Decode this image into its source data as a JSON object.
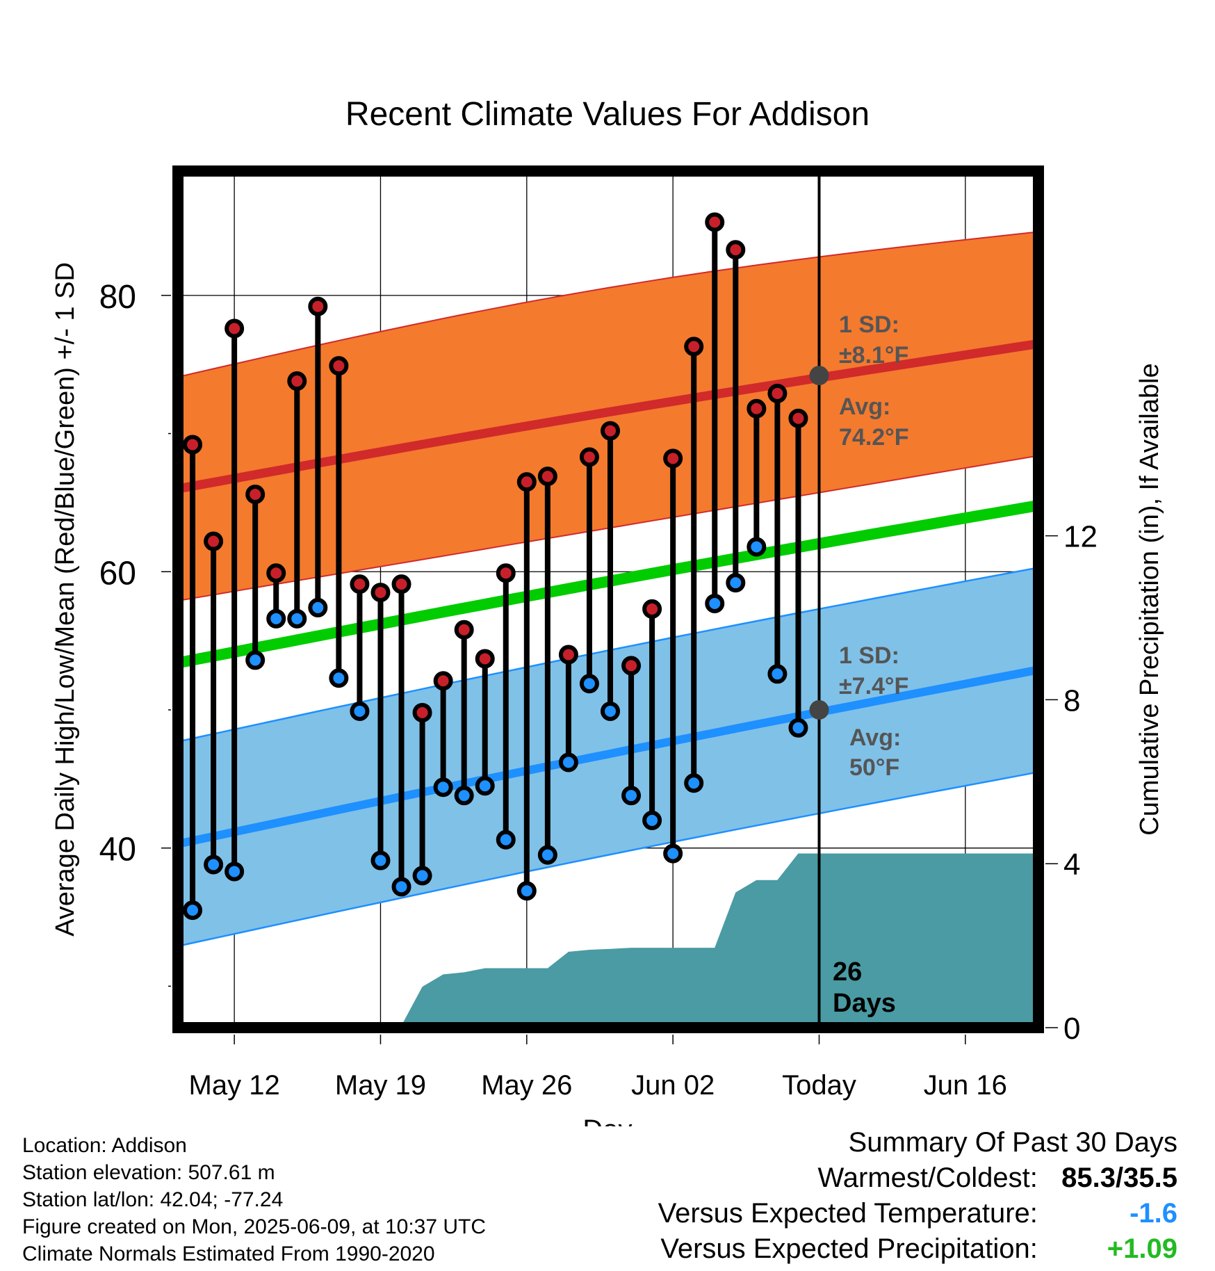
{
  "title": "Recent Climate Values For Addison",
  "left_axis_label": "Average Daily High/Low/Mean (Red/Blue/Green) +/- 1 SD",
  "right_axis_label": "Cumulative Precipitation (in), If Available",
  "x_axis_label": "Day",
  "colors": {
    "high_band": "#F47A2E",
    "high_line": "#D12A2A",
    "low_band": "#80C1E8",
    "low_line": "#1E90FF",
    "mean_line": "#00CC00",
    "precip": "#4A9BA3",
    "high_dot": "#C8202A",
    "low_dot": "#1E90FF",
    "avg_marker": "#444444",
    "annot_text": "#555555",
    "warm_value": "#000000",
    "temp_value": "#1E90FF",
    "precip_value": "#22BB22"
  },
  "annotations": {
    "high_sd_line1": "1 SD:",
    "high_sd_line2": "±8.1°F",
    "high_avg_line1": "Avg:",
    "high_avg_line2": "74.2°F",
    "low_sd_line1": "1 SD:",
    "low_sd_line2": "±7.4°F",
    "low_avg_line1": "Avg:",
    "low_avg_line2": "50°F",
    "days_line1": "26",
    "days_line2": "Days"
  },
  "footer": {
    "location": "Location: Addison",
    "elevation": "Station elevation: 507.61 m",
    "latlon": "Station lat/lon: 42.04; -77.24",
    "created": "Figure created on Mon, 2025-06-09, at 10:37 UTC",
    "normals": "Climate Normals Estimated From 1990-2020"
  },
  "summary": {
    "heading": "Summary Of Past 30 Days",
    "warm_cold_label": "Warmest/Coldest:",
    "warm_cold_value": "85.3/35.5",
    "temp_label": "Versus Expected Temperature:",
    "temp_value": "-1.6",
    "precip_label": "Versus Expected Precipitation:",
    "precip_value": "+1.09"
  },
  "chart_data": {
    "type": "line",
    "x_unit": "day of year 2025",
    "xlim": [
      129.3,
      170.5
    ],
    "x_ticks": [
      {
        "day": 132,
        "label": "May 12"
      },
      {
        "day": 139,
        "label": "May 19"
      },
      {
        "day": 146,
        "label": "May 26"
      },
      {
        "day": 153,
        "label": "Jun 02"
      },
      {
        "day": 160,
        "label": "Today"
      },
      {
        "day": 167,
        "label": "Jun 16"
      }
    ],
    "ylim_left": [
      27,
      89
    ],
    "y_ticks_left": [
      40,
      60,
      80
    ],
    "ylim_right": [
      0,
      20.9
    ],
    "y_ticks_right": [
      0,
      4,
      8,
      12
    ],
    "today_day": 160,
    "observed": {
      "days": [
        130,
        131,
        132,
        133,
        134,
        135,
        136,
        137,
        138,
        139,
        140,
        141,
        142,
        143,
        144,
        145,
        146,
        147,
        148,
        149,
        150,
        151,
        152,
        153,
        154,
        155,
        156,
        157,
        158,
        159
      ],
      "high": [
        69.2,
        62.2,
        77.6,
        65.6,
        59.9,
        73.8,
        79.2,
        74.9,
        59.1,
        58.5,
        59.1,
        49.8,
        52.1,
        55.8,
        53.7,
        59.9,
        66.5,
        66.9,
        54.0,
        68.3,
        70.2,
        53.2,
        57.3,
        68.2,
        76.3,
        85.3,
        83.3,
        71.8,
        72.9,
        71.1
      ],
      "low": [
        35.5,
        38.8,
        38.3,
        53.6,
        56.6,
        56.6,
        57.4,
        52.3,
        49.9,
        39.1,
        37.2,
        38.0,
        44.4,
        43.8,
        44.5,
        40.6,
        36.9,
        39.5,
        46.2,
        51.9,
        49.9,
        43.8,
        42.0,
        39.6,
        44.7,
        57.7,
        59.2,
        61.8,
        52.6,
        48.7
      ]
    },
    "normals": {
      "days": [
        129.3,
        170.5
      ],
      "high_mean": [
        66.0,
        76.5
      ],
      "high_sd": 8.1,
      "mean": [
        53.4,
        64.8
      ],
      "low_mean": [
        40.3,
        52.9
      ],
      "low_sd": 7.4,
      "today_high_avg": 74.2,
      "today_low_avg": 50
    },
    "precipitation": {
      "days": [
        129.3,
        133,
        135,
        137,
        139,
        140,
        141,
        142,
        143,
        144,
        145,
        146,
        147,
        148,
        149,
        150,
        151,
        152,
        153,
        154,
        155,
        156,
        157,
        158,
        159,
        160,
        161,
        170.5
      ],
      "cumulative": [
        0,
        0,
        0.05,
        0.05,
        0.05,
        0.05,
        1.0,
        1.3,
        1.35,
        1.45,
        1.45,
        1.45,
        1.45,
        1.85,
        1.9,
        1.92,
        1.95,
        1.95,
        1.95,
        1.95,
        1.95,
        3.3,
        3.6,
        3.6,
        4.25,
        4.25,
        4.25,
        4.25
      ]
    }
  }
}
